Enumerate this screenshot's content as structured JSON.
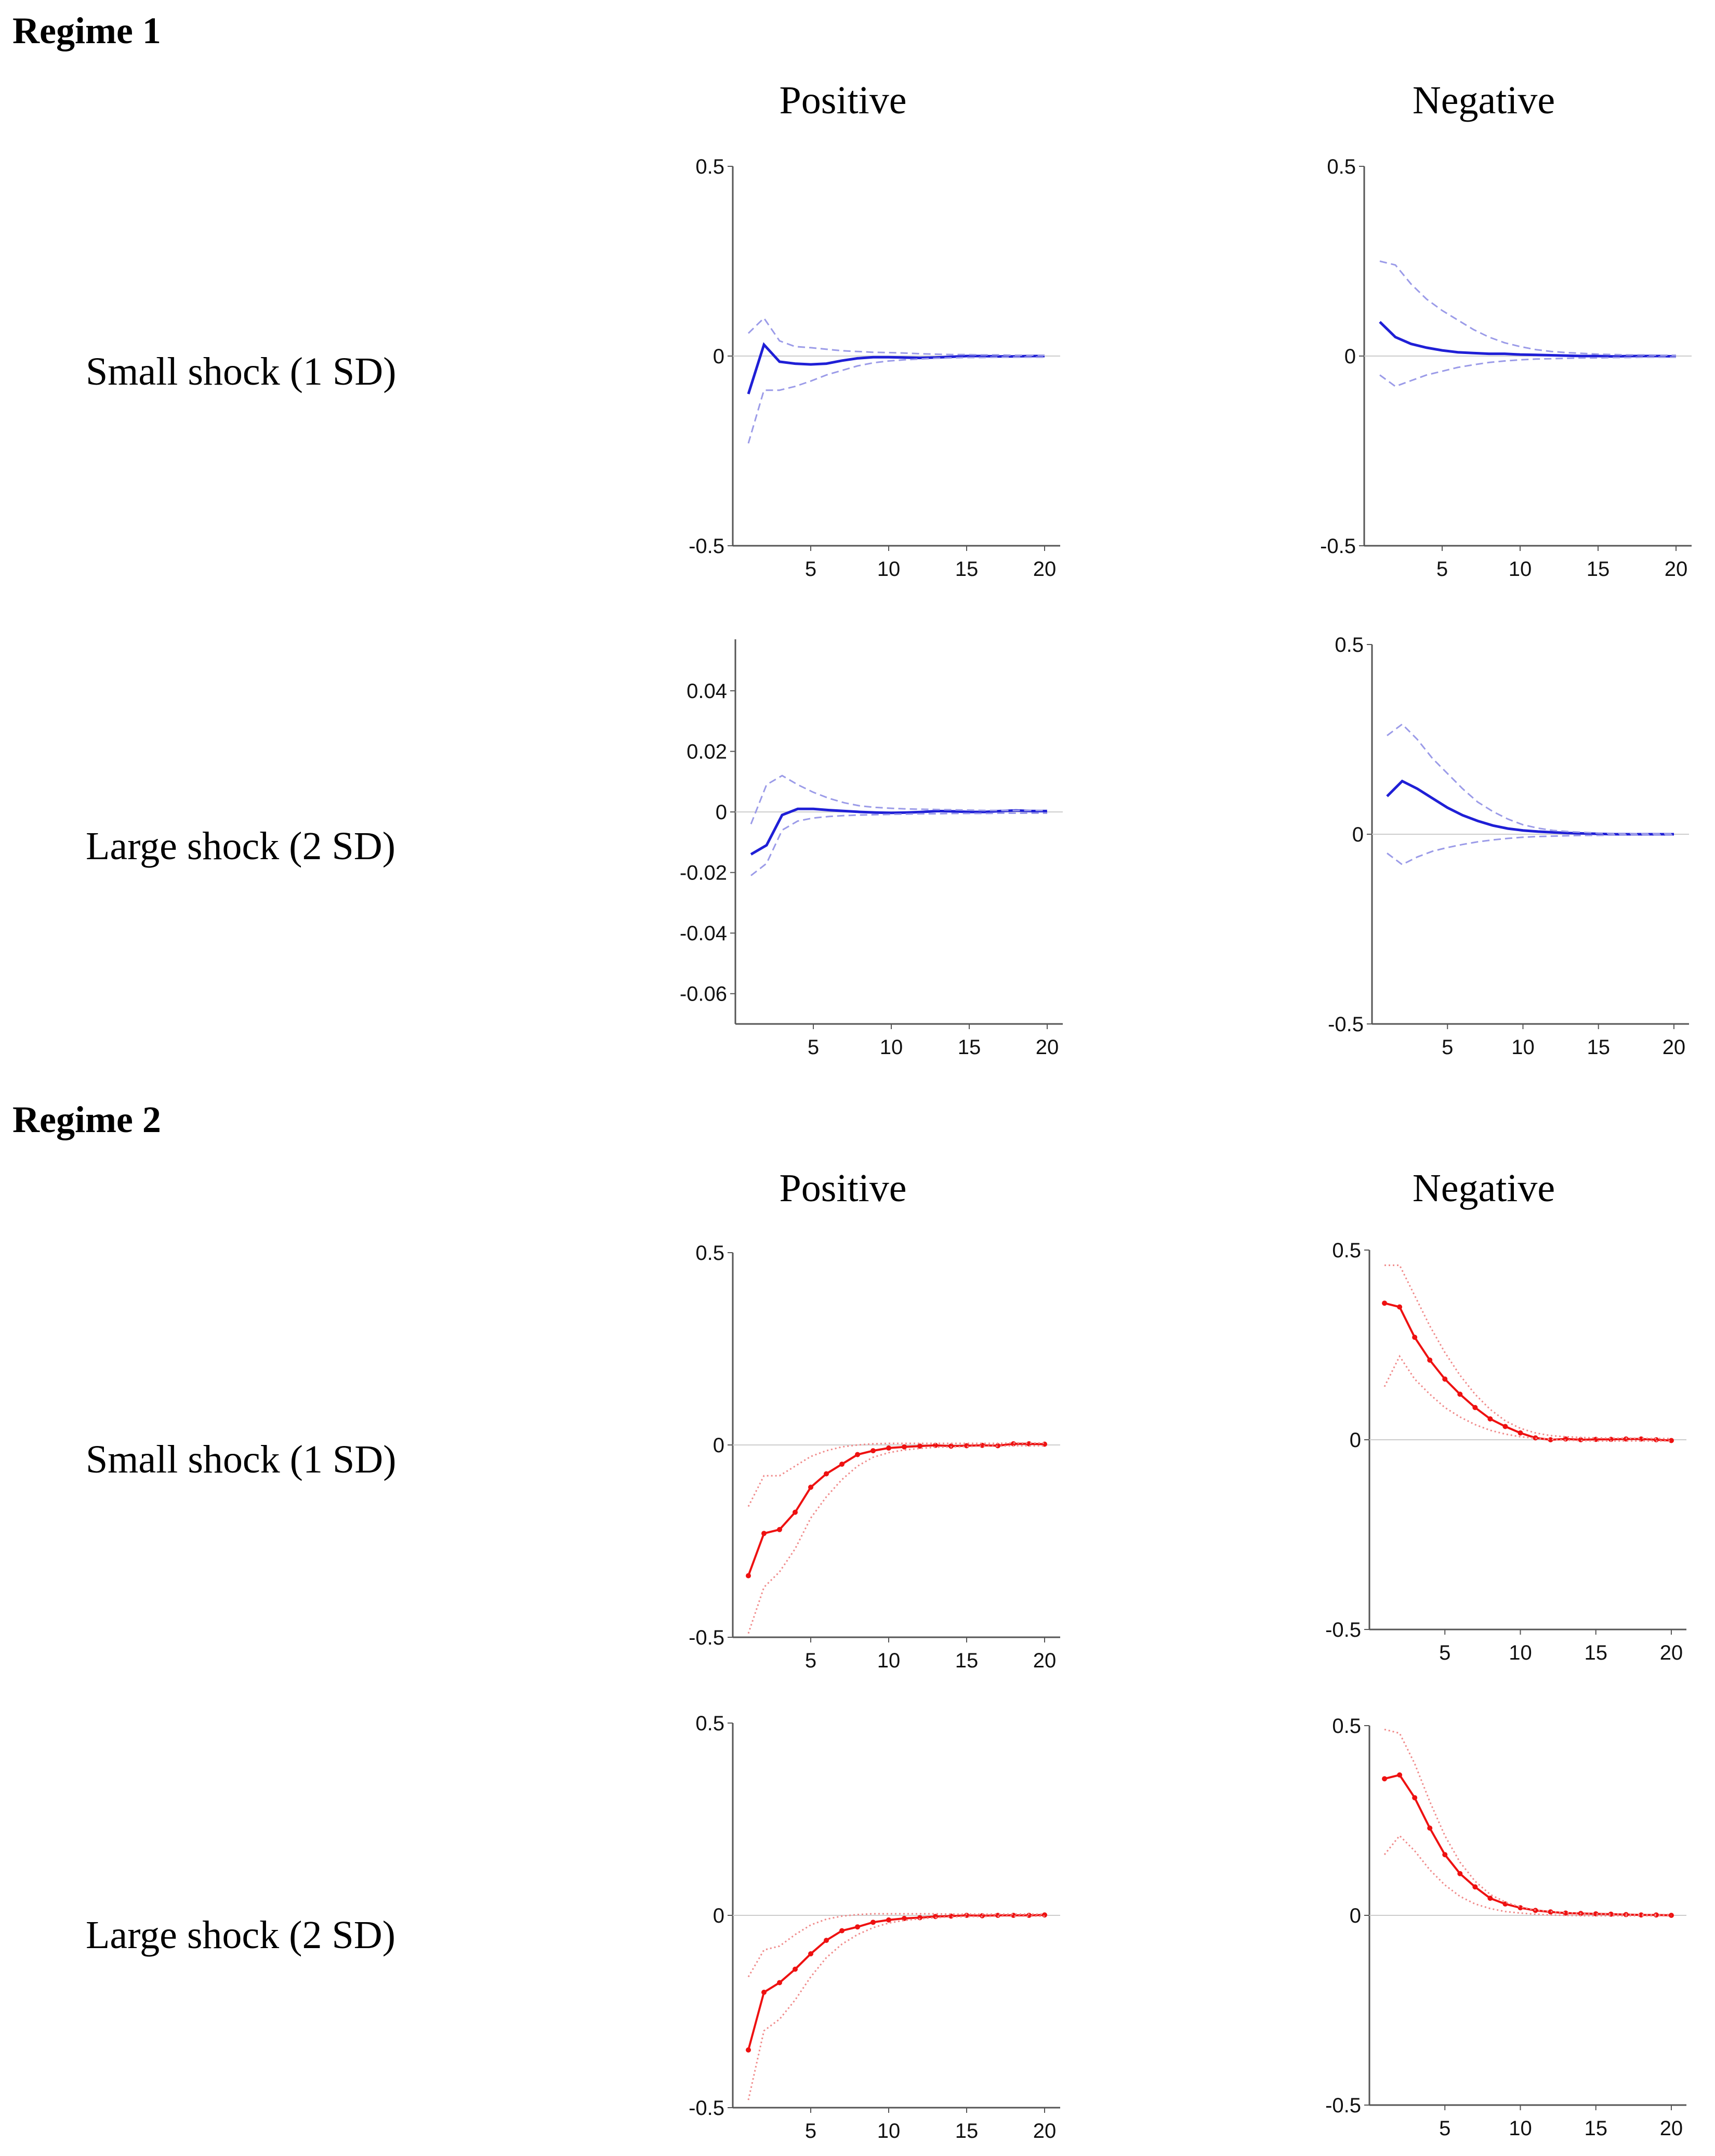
{
  "regimes": [
    {
      "title": "Regime 1",
      "columns": [
        "Positive",
        "Negative"
      ],
      "rows": [
        "Small shock (1 SD)",
        "Large shock (2 SD)"
      ]
    },
    {
      "title": "Regime 2",
      "columns": [
        "Positive",
        "Negative"
      ],
      "rows": [
        "Small shock (1 SD)",
        "Large shock (2 SD)"
      ]
    }
  ],
  "colors": {
    "regime1": "#1f1fd6",
    "regime1_band": "#9b9be8",
    "regime2": "#ee1111",
    "regime2_band": "#f08a8a",
    "zero_line": "#cccccc"
  },
  "chart_data": [
    {
      "type": "line",
      "id": "r1-small-positive",
      "x": [
        1,
        2,
        3,
        4,
        5,
        6,
        7,
        8,
        9,
        10,
        11,
        12,
        13,
        14,
        15,
        16,
        17,
        18,
        19,
        20
      ],
      "xlim": [
        0,
        21
      ],
      "ylim": [
        -0.5,
        0.5
      ],
      "xticks": [
        5,
        10,
        15,
        20
      ],
      "yticks": [
        -0.5,
        0,
        0.5
      ],
      "ytick_labels": [
        "-0.5",
        "0",
        "0.5"
      ],
      "series": [
        {
          "role": "estimate",
          "values": [
            -0.1,
            0.03,
            -0.015,
            -0.02,
            -0.022,
            -0.02,
            -0.012,
            -0.006,
            -0.003,
            -0.003,
            -0.004,
            -0.005,
            -0.004,
            -0.002,
            0.0,
            0.0,
            -0.001,
            -0.001,
            0.0,
            0.0
          ]
        },
        {
          "role": "upper",
          "values": [
            0.06,
            0.1,
            0.04,
            0.025,
            0.022,
            0.018,
            0.014,
            0.012,
            0.01,
            0.009,
            0.008,
            0.006,
            0.005,
            0.004,
            0.004,
            0.003,
            0.003,
            0.002,
            0.002,
            0.002
          ]
        },
        {
          "role": "lower",
          "values": [
            -0.23,
            -0.09,
            -0.09,
            -0.08,
            -0.066,
            -0.05,
            -0.038,
            -0.026,
            -0.018,
            -0.013,
            -0.01,
            -0.008,
            -0.006,
            -0.005,
            -0.004,
            -0.004,
            -0.003,
            -0.003,
            -0.003,
            -0.003
          ]
        }
      ]
    },
    {
      "type": "line",
      "id": "r1-small-negative",
      "x": [
        1,
        2,
        3,
        4,
        5,
        6,
        7,
        8,
        9,
        10,
        11,
        12,
        13,
        14,
        15,
        16,
        17,
        18,
        19,
        20
      ],
      "xlim": [
        0,
        21
      ],
      "ylim": [
        -0.5,
        0.5
      ],
      "xticks": [
        5,
        10,
        15,
        20
      ],
      "yticks": [
        -0.5,
        0,
        0.5
      ],
      "ytick_labels": [
        "-0.5",
        "0",
        "0.5"
      ],
      "series": [
        {
          "role": "estimate",
          "values": [
            0.09,
            0.05,
            0.032,
            0.022,
            0.015,
            0.01,
            0.008,
            0.006,
            0.006,
            0.004,
            0.003,
            0.002,
            0.001,
            0.0,
            0.0,
            -0.001,
            0.0,
            0.0,
            0.0,
            -0.001
          ]
        },
        {
          "role": "upper",
          "values": [
            0.25,
            0.24,
            0.19,
            0.15,
            0.12,
            0.095,
            0.07,
            0.05,
            0.035,
            0.025,
            0.017,
            0.012,
            0.009,
            0.007,
            0.005,
            0.004,
            0.003,
            0.003,
            0.002,
            0.002
          ]
        },
        {
          "role": "lower",
          "values": [
            -0.05,
            -0.08,
            -0.065,
            -0.05,
            -0.04,
            -0.03,
            -0.023,
            -0.017,
            -0.013,
            -0.01,
            -0.008,
            -0.007,
            -0.006,
            -0.005,
            -0.005,
            -0.004,
            -0.004,
            -0.003,
            -0.003,
            -0.003
          ]
        }
      ]
    },
    {
      "type": "line",
      "id": "r1-large-positive",
      "x": [
        1,
        2,
        3,
        4,
        5,
        6,
        7,
        8,
        9,
        10,
        11,
        12,
        13,
        14,
        15,
        16,
        17,
        18,
        19,
        20
      ],
      "xlim": [
        0,
        21
      ],
      "ylim": [
        -0.07,
        0.057
      ],
      "xticks": [
        5,
        10,
        15,
        20
      ],
      "yticks": [
        -0.06,
        -0.04,
        -0.02,
        0,
        0.02,
        0.04
      ],
      "ytick_labels": [
        "-0.06",
        "-0.04",
        "-0.02",
        "0",
        "0.02",
        "0.04"
      ],
      "series": [
        {
          "role": "estimate",
          "values": [
            -0.014,
            -0.011,
            -0.001,
            0.001,
            0.001,
            0.0006,
            0.0003,
            0.0,
            -0.0002,
            -0.0003,
            -0.0002,
            0.0,
            0.0003,
            0.0002,
            0.0,
            0.0,
            0.0003,
            0.0005,
            0.0003,
            0.0003
          ]
        },
        {
          "role": "upper",
          "values": [
            -0.004,
            0.009,
            0.012,
            0.009,
            0.0065,
            0.0045,
            0.003,
            0.002,
            0.0015,
            0.0012,
            0.001,
            0.0009,
            0.0008,
            0.0007,
            0.0006,
            0.0005,
            0.0005,
            0.0005,
            0.0005,
            0.0005
          ]
        },
        {
          "role": "lower",
          "values": [
            -0.021,
            -0.017,
            -0.006,
            -0.003,
            -0.002,
            -0.0015,
            -0.0012,
            -0.001,
            -0.0009,
            -0.0008,
            -0.0007,
            -0.0006,
            -0.0006,
            -0.0005,
            -0.0005,
            -0.0005,
            -0.0004,
            -0.0004,
            -0.0004,
            -0.0004
          ]
        }
      ]
    },
    {
      "type": "line",
      "id": "r1-large-negative",
      "x": [
        1,
        2,
        3,
        4,
        5,
        6,
        7,
        8,
        9,
        10,
        11,
        12,
        13,
        14,
        15,
        16,
        17,
        18,
        19,
        20
      ],
      "xlim": [
        0,
        21
      ],
      "ylim": [
        -0.5,
        0.5
      ],
      "xticks": [
        5,
        10,
        15,
        20
      ],
      "yticks": [
        -0.5,
        0,
        0.5
      ],
      "ytick_labels": [
        "-0.5",
        "0",
        "0.5"
      ],
      "series": [
        {
          "role": "estimate",
          "values": [
            0.1,
            0.14,
            0.12,
            0.095,
            0.07,
            0.05,
            0.035,
            0.023,
            0.015,
            0.01,
            0.007,
            0.005,
            0.003,
            0.002,
            0.001,
            0.0,
            0.0,
            0.0,
            0.0,
            0.0
          ]
        },
        {
          "role": "upper",
          "values": [
            0.26,
            0.29,
            0.25,
            0.2,
            0.16,
            0.12,
            0.085,
            0.06,
            0.04,
            0.025,
            0.016,
            0.01,
            0.007,
            0.005,
            0.003,
            0.002,
            0.002,
            0.001,
            0.001,
            0.001
          ]
        },
        {
          "role": "lower",
          "values": [
            -0.05,
            -0.08,
            -0.06,
            -0.045,
            -0.035,
            -0.027,
            -0.02,
            -0.015,
            -0.011,
            -0.008,
            -0.006,
            -0.005,
            -0.004,
            -0.003,
            -0.003,
            -0.002,
            -0.002,
            -0.002,
            -0.002,
            -0.002
          ]
        }
      ]
    },
    {
      "type": "line",
      "id": "r2-small-positive",
      "x": [
        1,
        2,
        3,
        4,
        5,
        6,
        7,
        8,
        9,
        10,
        11,
        12,
        13,
        14,
        15,
        16,
        17,
        18,
        19,
        20
      ],
      "xlim": [
        0,
        21
      ],
      "ylim": [
        -0.5,
        0.5
      ],
      "xticks": [
        5,
        10,
        15,
        20
      ],
      "yticks": [
        -0.5,
        0,
        0.5
      ],
      "ytick_labels": [
        "-0.5",
        "0",
        "0.5"
      ],
      "series": [
        {
          "role": "estimate",
          "values": [
            -0.34,
            -0.23,
            -0.22,
            -0.175,
            -0.11,
            -0.075,
            -0.05,
            -0.025,
            -0.015,
            -0.008,
            -0.005,
            -0.003,
            -0.001,
            -0.003,
            -0.002,
            -0.001,
            -0.002,
            0.003,
            0.003,
            0.002
          ]
        },
        {
          "role": "upper",
          "values": [
            -0.16,
            -0.08,
            -0.08,
            -0.055,
            -0.03,
            -0.015,
            -0.005,
            0.0,
            0.003,
            0.004,
            0.004,
            0.004,
            0.004,
            0.004,
            0.004,
            0.004,
            0.004,
            0.005,
            0.005,
            0.005
          ]
        },
        {
          "role": "lower",
          "values": [
            -0.49,
            -0.37,
            -0.33,
            -0.27,
            -0.19,
            -0.135,
            -0.09,
            -0.055,
            -0.032,
            -0.02,
            -0.013,
            -0.009,
            -0.006,
            -0.005,
            -0.004,
            -0.003,
            -0.003,
            -0.002,
            -0.002,
            -0.002
          ]
        }
      ]
    },
    {
      "type": "line",
      "id": "r2-small-negative",
      "x": [
        1,
        2,
        3,
        4,
        5,
        6,
        7,
        8,
        9,
        10,
        11,
        12,
        13,
        14,
        15,
        16,
        17,
        18,
        19,
        20
      ],
      "xlim": [
        0,
        21
      ],
      "ylim": [
        -0.5,
        0.5
      ],
      "xticks": [
        5,
        10,
        15,
        20
      ],
      "yticks": [
        -0.5,
        0,
        0.5
      ],
      "ytick_labels": [
        "-0.5",
        "0",
        "0.5"
      ],
      "series": [
        {
          "role": "estimate",
          "values": [
            0.36,
            0.35,
            0.27,
            0.21,
            0.16,
            0.12,
            0.085,
            0.055,
            0.035,
            0.018,
            0.005,
            0.0,
            0.002,
            0.0,
            0.001,
            0.001,
            0.002,
            0.002,
            0.0,
            -0.002
          ]
        },
        {
          "role": "upper",
          "values": [
            0.46,
            0.46,
            0.38,
            0.3,
            0.23,
            0.17,
            0.12,
            0.08,
            0.05,
            0.03,
            0.018,
            0.011,
            0.008,
            0.006,
            0.005,
            0.004,
            0.004,
            0.004,
            0.003,
            0.003
          ]
        },
        {
          "role": "lower",
          "values": [
            0.14,
            0.22,
            0.16,
            0.12,
            0.085,
            0.06,
            0.04,
            0.025,
            0.015,
            0.008,
            0.004,
            0.001,
            -0.001,
            -0.002,
            -0.003,
            -0.003,
            -0.003,
            -0.003,
            -0.003,
            -0.003
          ]
        }
      ]
    },
    {
      "type": "line",
      "id": "r2-large-positive",
      "x": [
        1,
        2,
        3,
        4,
        5,
        6,
        7,
        8,
        9,
        10,
        11,
        12,
        13,
        14,
        15,
        16,
        17,
        18,
        19,
        20
      ],
      "xlim": [
        0,
        21
      ],
      "ylim": [
        -0.5,
        0.5
      ],
      "xticks": [
        5,
        10,
        15,
        20
      ],
      "yticks": [
        -0.5,
        0,
        0.5
      ],
      "ytick_labels": [
        "-0.5",
        "0",
        "0.5"
      ],
      "series": [
        {
          "role": "estimate",
          "values": [
            -0.35,
            -0.2,
            -0.175,
            -0.14,
            -0.1,
            -0.065,
            -0.04,
            -0.03,
            -0.018,
            -0.012,
            -0.008,
            -0.006,
            -0.003,
            -0.002,
            0.0,
            -0.001,
            0.0,
            0.0,
            0.0,
            0.001
          ]
        },
        {
          "role": "upper",
          "values": [
            -0.16,
            -0.09,
            -0.08,
            -0.05,
            -0.025,
            -0.01,
            -0.002,
            0.002,
            0.004,
            0.004,
            0.004,
            0.004,
            0.004,
            0.003,
            0.003,
            0.003,
            0.003,
            0.003,
            0.003,
            0.003
          ]
        },
        {
          "role": "lower",
          "values": [
            -0.48,
            -0.3,
            -0.27,
            -0.22,
            -0.16,
            -0.11,
            -0.075,
            -0.05,
            -0.032,
            -0.02,
            -0.013,
            -0.009,
            -0.006,
            -0.004,
            -0.003,
            -0.003,
            -0.002,
            -0.002,
            -0.002,
            -0.002
          ]
        }
      ]
    },
    {
      "type": "line",
      "id": "r2-large-negative",
      "x": [
        1,
        2,
        3,
        4,
        5,
        6,
        7,
        8,
        9,
        10,
        11,
        12,
        13,
        14,
        15,
        16,
        17,
        18,
        19,
        20
      ],
      "xlim": [
        0,
        21
      ],
      "ylim": [
        -0.5,
        0.5
      ],
      "xticks": [
        5,
        10,
        15,
        20
      ],
      "yticks": [
        -0.5,
        0,
        0.5
      ],
      "ytick_labels": [
        "-0.5",
        "0",
        "0.5"
      ],
      "series": [
        {
          "role": "estimate",
          "values": [
            0.36,
            0.37,
            0.31,
            0.23,
            0.16,
            0.11,
            0.075,
            0.045,
            0.03,
            0.02,
            0.013,
            0.009,
            0.006,
            0.005,
            0.004,
            0.003,
            0.002,
            0.001,
            0.001,
            0.0
          ]
        },
        {
          "role": "upper",
          "values": [
            0.49,
            0.48,
            0.4,
            0.3,
            0.21,
            0.14,
            0.09,
            0.055,
            0.035,
            0.022,
            0.014,
            0.01,
            0.007,
            0.005,
            0.004,
            0.003,
            0.003,
            0.002,
            0.002,
            0.002
          ]
        },
        {
          "role": "lower",
          "values": [
            0.16,
            0.21,
            0.17,
            0.12,
            0.08,
            0.05,
            0.03,
            0.018,
            0.01,
            0.006,
            0.003,
            0.001,
            0.0,
            -0.001,
            -0.001,
            -0.001,
            -0.001,
            -0.001,
            -0.001,
            -0.001
          ]
        }
      ]
    }
  ]
}
